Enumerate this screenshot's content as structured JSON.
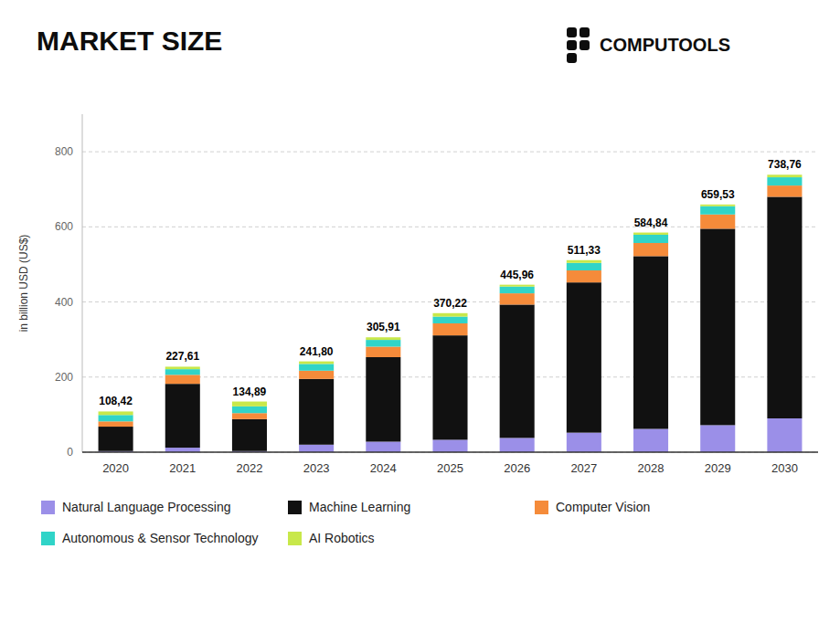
{
  "chart_data": {
    "type": "bar",
    "stacked": true,
    "title": "MARKET SIZE",
    "y_label": "in billion USD (US$)",
    "annotations": [
      "COMPUTOOLS"
    ],
    "categories": [
      "2020",
      "2021",
      "2022",
      "2023",
      "2024",
      "2025",
      "2026",
      "2027",
      "2028",
      "2029",
      "2030"
    ],
    "series": [
      {
        "name": "Natural Language Processing",
        "color": "#9b8fe8",
        "values": [
          3.0,
          12.0,
          3.0,
          20.0,
          28.0,
          33.0,
          38.0,
          52.0,
          62.0,
          72.0,
          90.0
        ]
      },
      {
        "name": "Machine Learning",
        "color": "#111111",
        "values": [
          65.0,
          170.0,
          85.0,
          175.0,
          225.0,
          278.0,
          355.0,
          400.0,
          460.0,
          523.0,
          590.0
        ]
      },
      {
        "name": "Computer Vision",
        "color": "#f58b3a",
        "values": [
          14.0,
          24.0,
          16.0,
          22.0,
          28.0,
          32.0,
          30.0,
          32.0,
          35.0,
          38.0,
          30.0
        ]
      },
      {
        "name": "Autonomous & Sensor Technology",
        "color": "#30d4c8",
        "values": [
          17.0,
          15.0,
          18.0,
          18.0,
          18.0,
          18.0,
          18.0,
          20.0,
          22.0,
          22.0,
          22.0
        ]
      },
      {
        "name": "AI Robotics",
        "color": "#c8e84a",
        "values": [
          9.42,
          6.61,
          12.89,
          6.8,
          6.91,
          9.22,
          4.96,
          7.33,
          5.84,
          4.53,
          6.76
        ]
      }
    ],
    "totals": [
      108.42,
      227.61,
      134.89,
      241.8,
      305.91,
      370.22,
      445.96,
      511.33,
      584.84,
      659.53,
      738.76
    ],
    "total_labels": [
      "108,42",
      "227,61",
      "134,89",
      "241,80",
      "305,91",
      "370,22",
      "445,96",
      "511,33",
      "584,84",
      "659,53",
      "738,76"
    ],
    "ylim": [
      0,
      900
    ],
    "yticks": [
      0,
      200,
      400,
      600,
      800
    ],
    "grid": true,
    "legend": "bottom"
  }
}
